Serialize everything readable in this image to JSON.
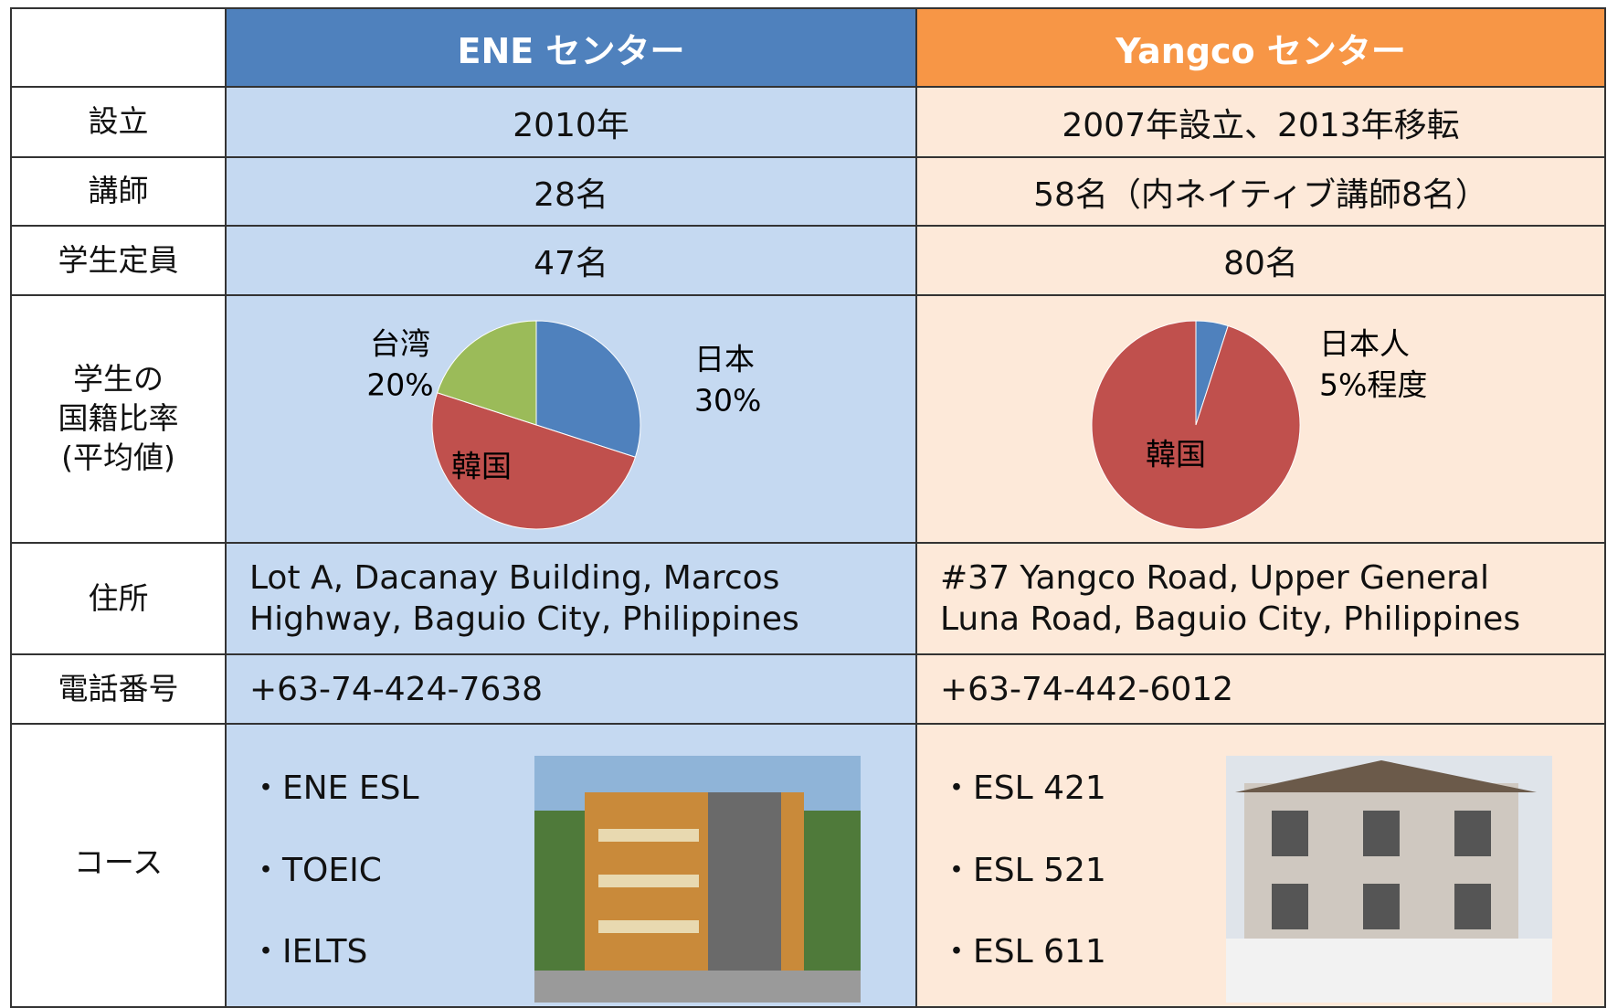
{
  "header": {
    "ene": "ENE センター",
    "yangco": "Yangco センター"
  },
  "rows": [
    {
      "label": "設立",
      "ene": "2010年",
      "yangco": "2007年設立、2013年移転"
    },
    {
      "label": "講師",
      "ene": "28名",
      "yangco": "58名（内ネイティブ講師8名）"
    },
    {
      "label": "学生定員",
      "ene": "47名",
      "yangco": "80名"
    },
    {
      "label": "学生の\n国籍比率\n(平均値)"
    },
    {
      "label": "住所",
      "ene": "Lot A, Dacanay Building, Marcos\nHighway, Baguio City, Philippines",
      "yangco": "#37 Yangco Road, Upper General\nLuna Road, Baguio City, Philippines"
    },
    {
      "label": "電話番号",
      "ene": "+63-74-424-7638",
      "yangco": "+63-74-442-6012"
    },
    {
      "label": "コース",
      "ene": [
        "・ENE ESL",
        "・TOEIC",
        "・IELTS"
      ],
      "yangco": [
        "・ESL 421",
        "・ESL 521",
        "・ESL 611"
      ]
    }
  ],
  "chart_data": [
    {
      "type": "pie",
      "categories": [
        "日本",
        "韓国",
        "台湾"
      ],
      "values": [
        30,
        50,
        20
      ],
      "value_labels": [
        "30%",
        null,
        "20%"
      ],
      "colors": [
        "#4f81bd",
        "#c0504d",
        "#9bbb59"
      ]
    },
    {
      "type": "pie",
      "categories": [
        "日本人",
        "韓国"
      ],
      "values": [
        5,
        95
      ],
      "value_labels": [
        "5%程度",
        null
      ],
      "colors": [
        "#4f81bd",
        "#c0504d"
      ]
    }
  ]
}
